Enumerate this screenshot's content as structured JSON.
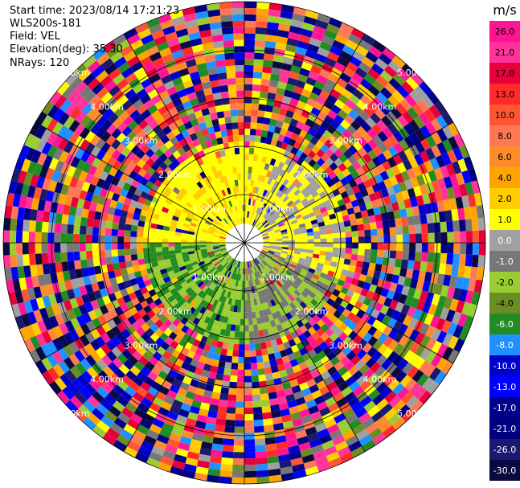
{
  "info": {
    "start_time": "Start time: 2023/08/14 17:21:23",
    "instrument": "WLS200s-181",
    "field": "Field: VEL",
    "elevation": "Elevation(deg): 35.30",
    "nrays": "NRays: 120"
  },
  "colorbar": {
    "unit": "m/s",
    "ticks": [
      "26.0",
      "21.0",
      "17.0",
      "13.0",
      "10.0",
      "8.0",
      "6.0",
      "4.0",
      "2.0",
      "1.0",
      "0.0",
      "-1.0",
      "-2.0",
      "-4.0",
      "-6.0",
      "-8.0",
      "-10.0",
      "-13.0",
      "-17.0",
      "-21.0",
      "-26.0",
      "-30.0"
    ],
    "colors": [
      "#ff1493",
      "#ff3399",
      "#e8003a",
      "#ff2a2a",
      "#ff5533",
      "#ff7755",
      "#ff8c2a",
      "#ffa500",
      "#ffcc00",
      "#ffff00",
      "#a0a0a0",
      "#777777",
      "#9acd32",
      "#6b8e23",
      "#228b22",
      "#1e90ff",
      "#0000cd",
      "#0000ff",
      "#00008b",
      "#000080",
      "#191970",
      "#0a0a40"
    ]
  },
  "chart_data": {
    "type": "heatmap",
    "field": "VEL",
    "units": "m/s",
    "nrays": 120,
    "range_ring_labels_km": [
      "1.00km",
      "2.00km",
      "3.00km",
      "4.00km",
      "5.00km"
    ],
    "ring_label_text": {
      "r1": "1.00km",
      "r2": "2.00km",
      "r3": "3.00km",
      "r4": "4.00km",
      "r5": "5.00km"
    },
    "vmin": -30.0,
    "vmax": 26.0
  }
}
